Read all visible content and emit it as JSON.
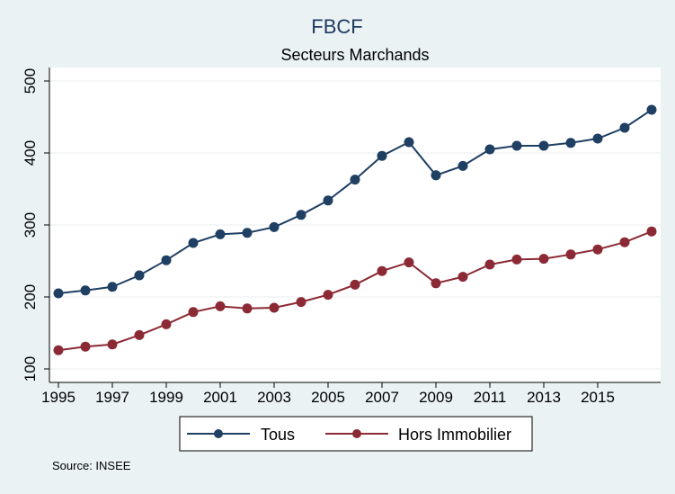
{
  "chart_data": {
    "type": "line",
    "title": "FBCF",
    "subtitle": "Secteurs Marchands",
    "xlabel": "",
    "ylabel": "",
    "x": [
      1995,
      1996,
      1997,
      1998,
      1999,
      2000,
      2001,
      2002,
      2003,
      2004,
      2005,
      2006,
      2007,
      2008,
      2009,
      2010,
      2011,
      2012,
      2013,
      2014,
      2015,
      2016,
      2017
    ],
    "xticks": [
      "1995",
      "1997",
      "1999",
      "2001",
      "2003",
      "2005",
      "2007",
      "2009",
      "2011",
      "2013",
      "2015"
    ],
    "yticks": [
      "100",
      "200",
      "300",
      "400",
      "500"
    ],
    "ylim": [
      100,
      500
    ],
    "xlim": [
      1995,
      2017
    ],
    "grid": true,
    "legend_position": "bottom",
    "series": [
      {
        "name": "Tous",
        "color": "#1f3f63",
        "values": [
          205,
          209,
          214,
          230,
          251,
          275,
          287,
          289,
          297,
          314,
          334,
          363,
          396,
          415,
          369,
          382,
          405,
          410,
          410,
          414,
          420,
          435,
          460
        ]
      },
      {
        "name": "Hors Immobilier",
        "color": "#8b2a34",
        "values": [
          126,
          131,
          134,
          147,
          162,
          179,
          187,
          184,
          185,
          193,
          203,
          217,
          236,
          248,
          219,
          228,
          245,
          252,
          253,
          259,
          266,
          276,
          291
        ]
      }
    ],
    "note": "Source: INSEE"
  },
  "colors": {
    "background": "#eaf2f3",
    "plot_background": "#ffffff",
    "gridline": "#e8eef0",
    "axis": "#000000"
  }
}
